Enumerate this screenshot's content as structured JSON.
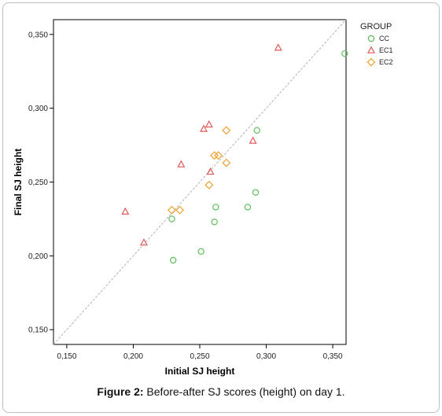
{
  "figure": {
    "caption_label": "Figure 2:",
    "caption_text": " Before-after SJ scores (height) on day 1."
  },
  "chart_data": {
    "type": "scatter",
    "title": "",
    "xlabel": "Initial SJ height",
    "ylabel": "Final SJ height",
    "xlim": [
      0.14,
      0.36
    ],
    "ylim": [
      0.14,
      0.36
    ],
    "xticks": [
      "0,150",
      "0,200",
      "0,250",
      "0,300",
      "0,350"
    ],
    "xtick_values": [
      0.15,
      0.2,
      0.25,
      0.3,
      0.35
    ],
    "yticks": [
      "0,150",
      "0,200",
      "0,250",
      "0,300",
      "0,350"
    ],
    "ytick_values": [
      0.15,
      0.2,
      0.25,
      0.3,
      0.35
    ],
    "grid": false,
    "reference_line": "y = x (dashed)",
    "legend": {
      "title": "GROUP",
      "placement": "top-right"
    },
    "series": [
      {
        "name": "CC",
        "marker": "circle",
        "color": "#5cbf5c",
        "points": [
          {
            "x": 0.229,
            "y": 0.225
          },
          {
            "x": 0.23,
            "y": 0.197
          },
          {
            "x": 0.251,
            "y": 0.203
          },
          {
            "x": 0.261,
            "y": 0.223
          },
          {
            "x": 0.262,
            "y": 0.233
          },
          {
            "x": 0.286,
            "y": 0.233
          },
          {
            "x": 0.292,
            "y": 0.243
          },
          {
            "x": 0.293,
            "y": 0.285
          },
          {
            "x": 0.359,
            "y": 0.337
          }
        ]
      },
      {
        "name": "EC1",
        "marker": "triangle",
        "color": "#e05a5a",
        "points": [
          {
            "x": 0.194,
            "y": 0.23
          },
          {
            "x": 0.208,
            "y": 0.209
          },
          {
            "x": 0.236,
            "y": 0.262
          },
          {
            "x": 0.253,
            "y": 0.286
          },
          {
            "x": 0.257,
            "y": 0.289
          },
          {
            "x": 0.258,
            "y": 0.257
          },
          {
            "x": 0.29,
            "y": 0.278
          },
          {
            "x": 0.309,
            "y": 0.341
          }
        ]
      },
      {
        "name": "EC2",
        "marker": "diamond",
        "color": "#f0a030",
        "points": [
          {
            "x": 0.229,
            "y": 0.231
          },
          {
            "x": 0.235,
            "y": 0.231
          },
          {
            "x": 0.257,
            "y": 0.248
          },
          {
            "x": 0.261,
            "y": 0.268
          },
          {
            "x": 0.264,
            "y": 0.268
          },
          {
            "x": 0.27,
            "y": 0.263
          },
          {
            "x": 0.27,
            "y": 0.285
          }
        ]
      }
    ]
  }
}
